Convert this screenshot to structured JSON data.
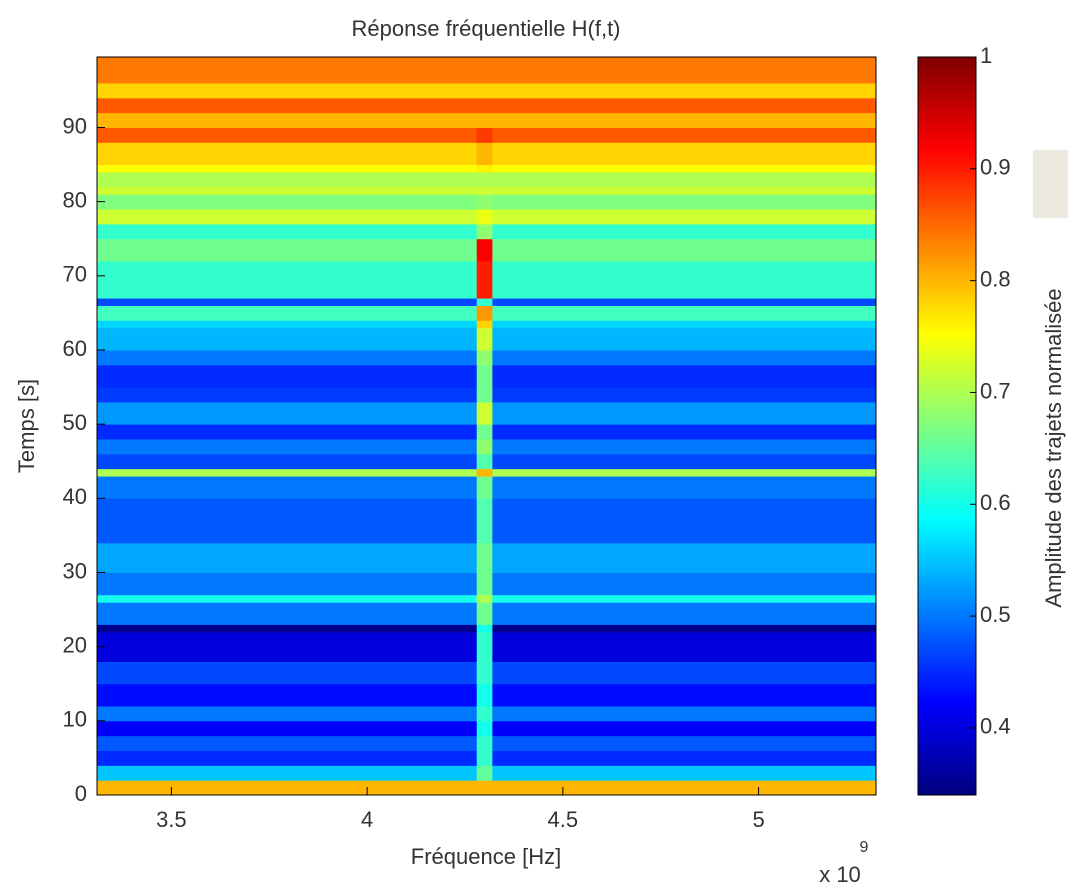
{
  "chart_data": {
    "type": "heatmap",
    "title": "Réponse fréquentielle H(f,t)",
    "x_label": "Fréquence [Hz]",
    "y_label": "Temps [s]",
    "x_offset": "x 10",
    "x_offset_exponent": "9",
    "colorbar_label": "Amplitude des trajets normalisée",
    "colormap": "jet",
    "xlim": [
      3.31,
      5.3
    ],
    "ylim": [
      0,
      99.5
    ],
    "xticks": [
      3.5,
      4,
      4.5,
      5
    ],
    "yticks": [
      0,
      10,
      20,
      30,
      40,
      50,
      60,
      70,
      80,
      90
    ],
    "clim": [
      0.34,
      1
    ],
    "cticks": [
      0.4,
      0.5,
      0.6,
      0.7,
      0.8,
      0.9,
      1
    ],
    "x_edges": [
      3.31,
      4.28,
      4.32,
      5.3
    ],
    "y_edges": [
      0,
      2,
      4,
      6,
      8,
      10,
      12,
      15,
      18,
      22,
      23,
      26,
      27,
      30,
      34,
      40,
      43,
      44,
      46,
      48,
      50,
      53,
      55,
      58,
      60,
      63,
      64,
      66,
      67,
      72,
      75,
      77,
      79,
      81,
      82,
      84,
      85,
      88,
      90,
      92,
      94,
      96,
      99.5
    ],
    "values": [
      [
        0.8,
        0.8,
        0.8
      ],
      [
        0.55,
        0.65,
        0.55
      ],
      [
        0.45,
        0.62,
        0.45
      ],
      [
        0.48,
        0.62,
        0.48
      ],
      [
        0.42,
        0.6,
        0.42
      ],
      [
        0.5,
        0.62,
        0.5
      ],
      [
        0.43,
        0.6,
        0.43
      ],
      [
        0.47,
        0.62,
        0.47
      ],
      [
        0.4,
        0.62,
        0.4
      ],
      [
        0.35,
        0.6,
        0.35
      ],
      [
        0.5,
        0.66,
        0.5
      ],
      [
        0.6,
        0.7,
        0.6
      ],
      [
        0.5,
        0.66,
        0.5
      ],
      [
        0.53,
        0.66,
        0.53
      ],
      [
        0.48,
        0.64,
        0.48
      ],
      [
        0.5,
        0.66,
        0.5
      ],
      [
        0.7,
        0.8,
        0.7
      ],
      [
        0.47,
        0.64,
        0.47
      ],
      [
        0.5,
        0.68,
        0.5
      ],
      [
        0.45,
        0.66,
        0.45
      ],
      [
        0.52,
        0.72,
        0.52
      ],
      [
        0.46,
        0.66,
        0.46
      ],
      [
        0.45,
        0.66,
        0.45
      ],
      [
        0.5,
        0.68,
        0.5
      ],
      [
        0.54,
        0.72,
        0.54
      ],
      [
        0.56,
        0.78,
        0.56
      ],
      [
        0.63,
        0.82,
        0.63
      ],
      [
        0.47,
        0.62,
        0.47
      ],
      [
        0.62,
        0.9,
        0.62
      ],
      [
        0.66,
        0.92,
        0.66
      ],
      [
        0.62,
        0.68,
        0.62
      ],
      [
        0.72,
        0.74,
        0.72
      ],
      [
        0.67,
        0.68,
        0.67
      ],
      [
        0.72,
        0.72,
        0.72
      ],
      [
        0.7,
        0.7,
        0.7
      ],
      [
        0.75,
        0.76,
        0.75
      ],
      [
        0.78,
        0.8,
        0.78
      ],
      [
        0.86,
        0.88,
        0.86
      ],
      [
        0.8,
        0.8,
        0.8
      ],
      [
        0.86,
        0.86,
        0.86
      ],
      [
        0.78,
        0.78,
        0.78
      ],
      [
        0.84,
        0.84,
        0.84
      ]
    ]
  }
}
